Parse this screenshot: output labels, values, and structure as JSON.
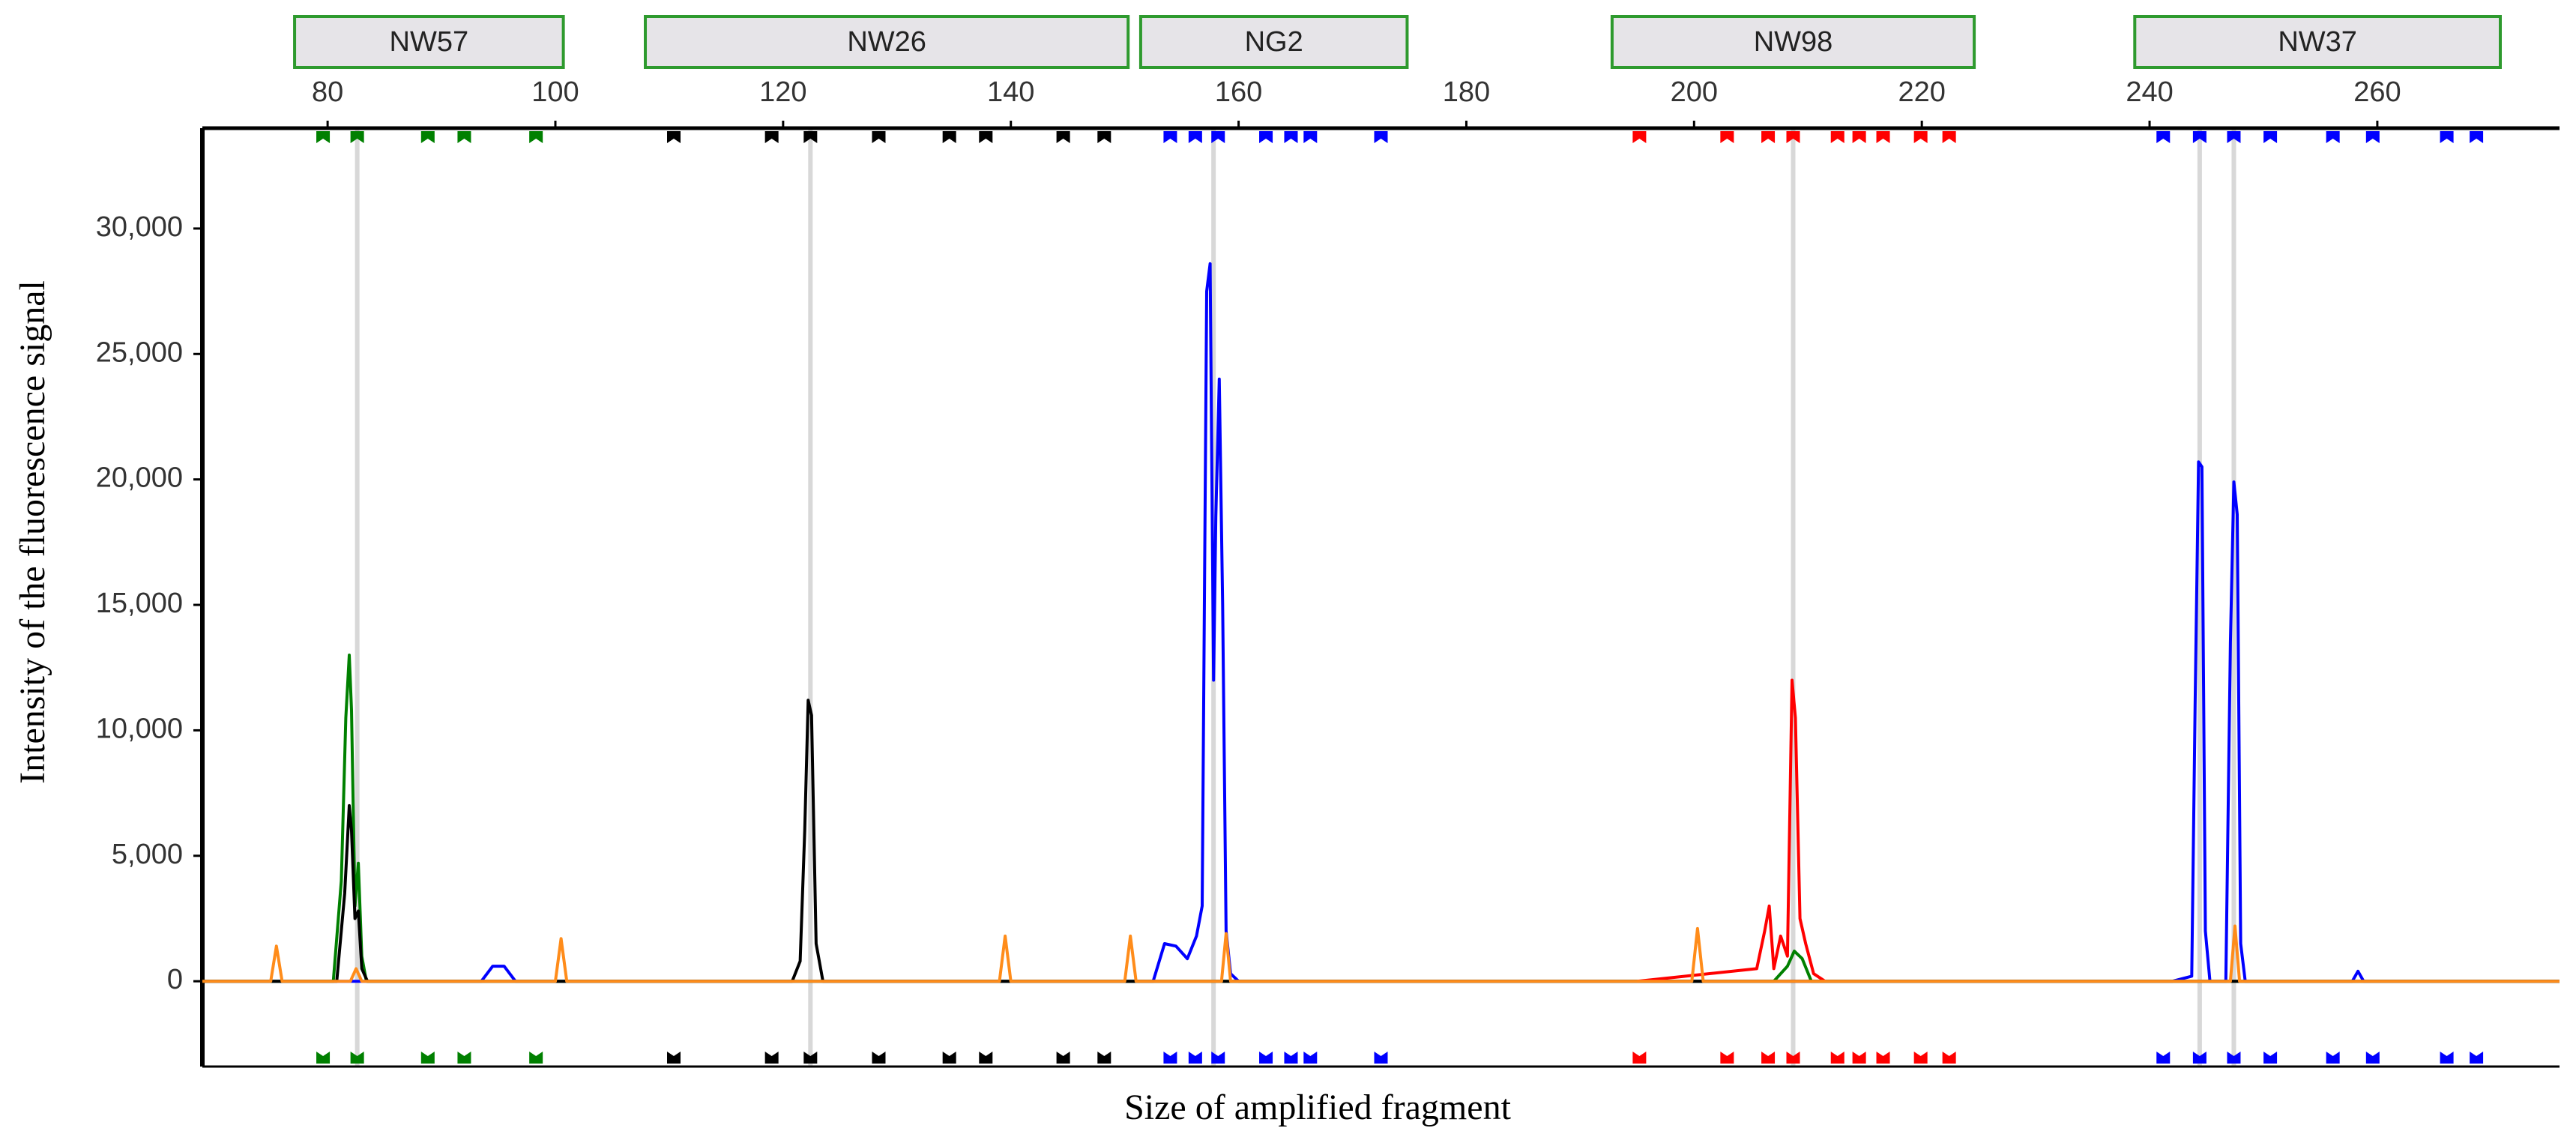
{
  "chart_data": {
    "type": "line",
    "x_label": "Size of amplified fragment",
    "y_label": "Intensity of the fluorescence signal",
    "xlim": [
      69,
      276
    ],
    "ylim": [
      -3400,
      34000
    ],
    "xticks": [
      80,
      100,
      120,
      140,
      160,
      180,
      200,
      220,
      240,
      260
    ],
    "yticks": [
      0,
      {
        "value": 5000,
        "label": "5,000"
      },
      {
        "value": 10000,
        "label": "10,000"
      },
      {
        "value": 15000,
        "label": "15,000"
      },
      {
        "value": 20000,
        "label": "20,000"
      },
      {
        "value": 25000,
        "label": "25,000"
      },
      {
        "value": 30000,
        "label": "30,000"
      }
    ],
    "bins": [
      {
        "label": "NW57",
        "start": 77.1,
        "end": 100.7
      },
      {
        "label": "NW26",
        "start": 107.9,
        "end": 150.3
      },
      {
        "label": "NG2",
        "start": 151.4,
        "end": 174.8
      },
      {
        "label": "NW98",
        "start": 192.8,
        "end": 224.6
      },
      {
        "label": "NW37",
        "start": 238.7,
        "end": 270.8
      }
    ],
    "allele_calls": [
      82.6,
      122.4,
      157.8,
      208.7,
      244.4,
      247.4
    ],
    "markers": [
      {
        "color": "#008000",
        "x": [
          79.6,
          82.6,
          88.8,
          92.0,
          98.3
        ]
      },
      {
        "color": "#000000",
        "x": [
          110.4,
          119.0,
          122.4,
          128.4,
          134.6,
          137.8,
          144.6,
          148.2
        ]
      },
      {
        "color": "#0000ff",
        "x": [
          154.0,
          156.2,
          158.2,
          162.4,
          164.6,
          166.3,
          172.5
        ]
      },
      {
        "color": "#ff0000",
        "x": [
          195.2,
          202.9,
          206.5,
          208.7,
          212.6,
          214.5,
          216.6,
          219.9,
          222.4
        ]
      },
      {
        "color": "#0000ff",
        "x": [
          241.2,
          244.4,
          247.4,
          250.6,
          256.1,
          259.6,
          266.1,
          268.7
        ]
      }
    ],
    "series": [
      {
        "color": "#0000ff",
        "x": [
          69,
          93.5,
          94.5,
          95.5,
          96.5,
          152.5,
          153.5,
          154.5,
          155.5,
          156.3,
          156.8,
          157.2,
          157.5,
          157.8,
          158.0,
          158.3,
          158.6,
          158.9,
          159.3,
          160,
          242,
          243.7,
          244.0,
          244.3,
          244.6,
          244.9,
          245.3,
          246.7,
          247.1,
          247.4,
          247.7,
          248.0,
          248.4,
          257.8,
          258.3,
          258.8,
          276
        ],
        "y": [
          0,
          0,
          600,
          600,
          0,
          0,
          1500,
          1400,
          900,
          1800,
          3000,
          27500,
          28600,
          12000,
          18500,
          24000,
          15000,
          2000,
          300,
          0,
          0,
          200,
          11000,
          20700,
          20500,
          2000,
          0,
          0,
          13500,
          19900,
          18600,
          1500,
          0,
          0,
          400,
          0,
          0
        ]
      },
      {
        "color": "#008000",
        "x": [
          69,
          80.5,
          81.2,
          81.6,
          81.9,
          82.1,
          82.4,
          82.7,
          83.0,
          83.4,
          84,
          207,
          208.2,
          208.8,
          209.5,
          210.3,
          276
        ],
        "y": [
          0,
          0,
          4000,
          10500,
          13000,
          10800,
          3000,
          4700,
          1000,
          0,
          0,
          0,
          600,
          1200,
          900,
          0,
          0
        ]
      },
      {
        "color": "#000000",
        "x": [
          69,
          80.8,
          81.5,
          81.9,
          82.1,
          82.4,
          82.7,
          83.0,
          83.5,
          120.8,
          121.5,
          121.9,
          122.2,
          122.5,
          122.9,
          123.5,
          276
        ],
        "y": [
          0,
          0,
          3500,
          7000,
          6000,
          2500,
          2800,
          500,
          0,
          0,
          800,
          6000,
          11200,
          10600,
          1500,
          0,
          0
        ]
      },
      {
        "color": "#ff0000",
        "x": [
          195,
          205.5,
          206.2,
          206.6,
          207.0,
          207.6,
          208.2,
          208.6,
          208.9,
          209.3,
          209.8,
          210.5,
          211.5
        ],
        "y": [
          0,
          500,
          2000,
          3000,
          500,
          1800,
          1000,
          12000,
          10500,
          2500,
          1500,
          300,
          0
        ]
      },
      {
        "color": "#ff8c1a",
        "x": [
          69,
          75,
          75.5,
          76,
          82,
          82.5,
          83,
          100,
          100.5,
          101,
          139,
          139.5,
          140,
          150,
          150.5,
          151,
          158.5,
          158.9,
          159.3,
          199.8,
          200.3,
          200.8,
          247.1,
          247.5,
          247.9,
          276
        ],
        "y": [
          0,
          0,
          1400,
          0,
          0,
          500,
          0,
          0,
          1700,
          0,
          0,
          1800,
          0,
          0,
          1800,
          0,
          0,
          1900,
          0,
          0,
          2100,
          0,
          0,
          2200,
          0,
          0
        ]
      }
    ]
  }
}
